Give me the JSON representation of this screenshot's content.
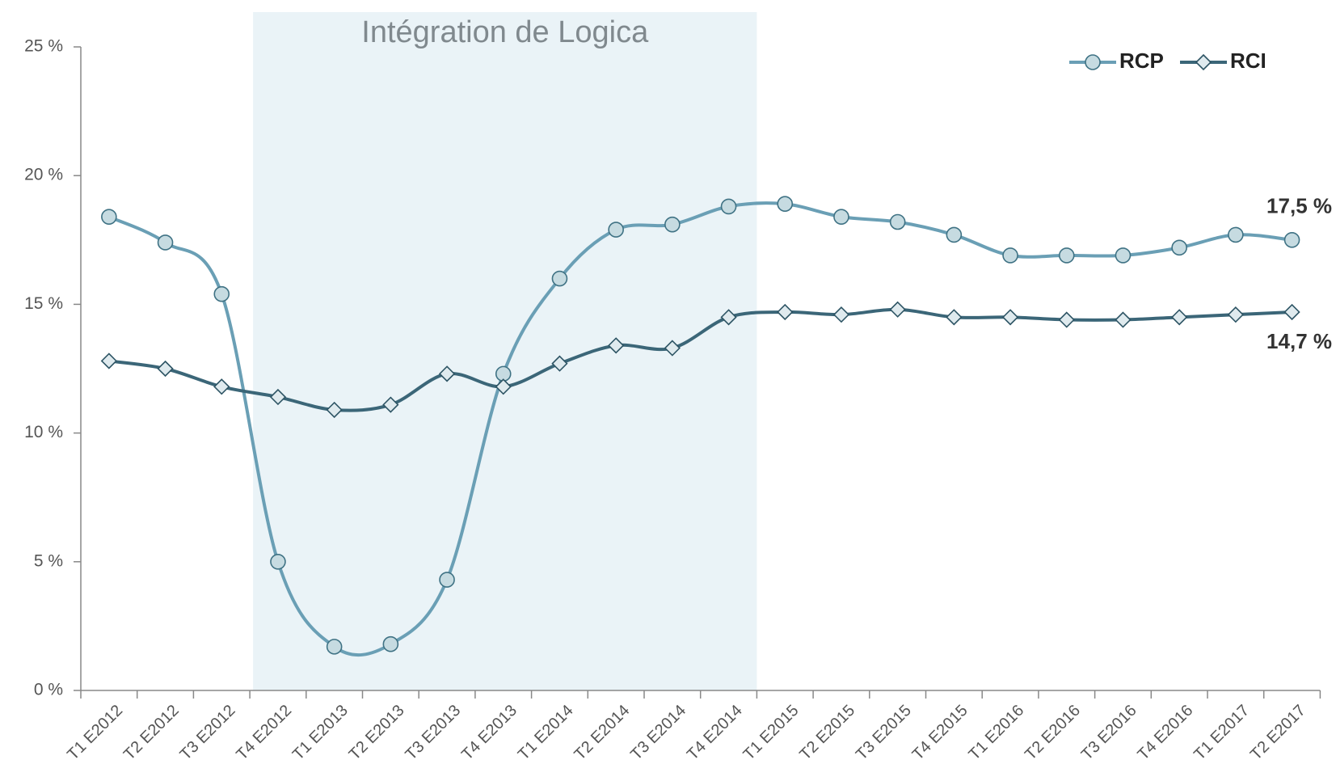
{
  "chart_data": {
    "type": "line",
    "highlight": {
      "label": "Intégration de Logica",
      "from": "T4 E2012",
      "to": "T4 E2014"
    },
    "categories": [
      "T1 E2012",
      "T2 E2012",
      "T3 E2012",
      "T4 E2012",
      "T1 E2013",
      "T2 E2013",
      "T3 E2013",
      "T4 E2013",
      "T1 E2014",
      "T2 E2014",
      "T3 E2014",
      "T4 E2014",
      "T1 E2015",
      "T2 E2015",
      "T3 E2015",
      "T4 E2015",
      "T1 E2016",
      "T2 E2016",
      "T3 E2016",
      "T4 E2016",
      "T1 E2017",
      "T2 E2017"
    ],
    "series": [
      {
        "name": "RCP",
        "color": "#6a9fb5",
        "marker": "circle",
        "values": [
          18.4,
          17.4,
          15.4,
          5.0,
          1.7,
          1.8,
          4.3,
          12.3,
          16.0,
          17.9,
          18.1,
          18.8,
          18.9,
          18.4,
          18.2,
          17.7,
          16.9,
          16.9,
          16.9,
          17.2,
          17.7,
          17.5
        ],
        "value_labels": [
          null,
          null,
          null,
          null,
          null,
          null,
          null,
          null,
          null,
          null,
          null,
          null,
          null,
          null,
          null,
          null,
          null,
          null,
          null,
          null,
          null,
          "17,5 %"
        ]
      },
      {
        "name": "RCI",
        "color": "#3b6678",
        "marker": "diamond",
        "values": [
          12.8,
          12.5,
          11.8,
          11.4,
          10.9,
          11.1,
          12.3,
          11.8,
          12.7,
          13.4,
          13.3,
          14.5,
          14.7,
          14.6,
          14.8,
          14.5,
          14.5,
          14.4,
          14.4,
          14.5,
          14.6,
          14.7
        ],
        "value_labels": [
          null,
          null,
          null,
          null,
          null,
          null,
          null,
          null,
          null,
          null,
          null,
          null,
          null,
          null,
          null,
          null,
          null,
          null,
          null,
          null,
          null,
          "14,7 %"
        ]
      }
    ],
    "ylim": [
      0,
      25
    ],
    "yticks": [
      {
        "value": 0,
        "label": "0 %"
      },
      {
        "value": 5,
        "label": "5 %"
      },
      {
        "value": 10,
        "label": "10 %"
      },
      {
        "value": 15,
        "label": "15 %"
      },
      {
        "value": 20,
        "label": "20 %"
      },
      {
        "value": 25,
        "label": "25 %"
      }
    ],
    "legend": "upper right",
    "grid": false
  }
}
